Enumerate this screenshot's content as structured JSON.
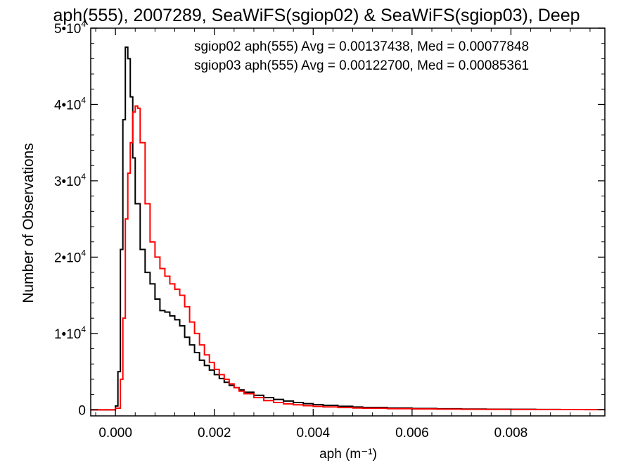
{
  "chart_data": {
    "type": "line",
    "title": "aph(555), 2007289, SeaWiFS(sgiop02) & SeaWiFS(sgiop03), Deep",
    "xlabel": "aph (m⁻¹)",
    "ylabel": "Number of Observations",
    "xlim": [
      -0.0005,
      0.0099
    ],
    "ylim": [
      -800,
      50000
    ],
    "x_ticks": [
      {
        "value": 0.0,
        "label": "0.000"
      },
      {
        "value": 0.002,
        "label": "0.002"
      },
      {
        "value": 0.004,
        "label": "0.004"
      },
      {
        "value": 0.006,
        "label": "0.006"
      },
      {
        "value": 0.008,
        "label": "0.008"
      }
    ],
    "y_ticks": [
      {
        "value": 0,
        "mant": "0",
        "exp": ""
      },
      {
        "value": 10000,
        "mant": "1•10",
        "exp": "4"
      },
      {
        "value": 20000,
        "mant": "2•10",
        "exp": "4"
      },
      {
        "value": 30000,
        "mant": "3•10",
        "exp": "4"
      },
      {
        "value": 40000,
        "mant": "4•10",
        "exp": "4"
      },
      {
        "value": 50000,
        "mant": "5•10",
        "exp": "4"
      }
    ],
    "grid": false,
    "legend_position": "top-right",
    "series": [
      {
        "name": "sgiop02",
        "label": "sgiop02 aph(555) Avg = 0.00137438, Med = 0.00077848",
        "color": "#000000",
        "x": [
          -0.0005,
          0.0,
          5e-05,
          0.0001,
          0.00015,
          0.0002,
          0.00025,
          0.0003,
          0.00035,
          0.0004,
          0.0005,
          0.0006,
          0.0007,
          0.0008,
          0.0009,
          0.001,
          0.0011,
          0.0012,
          0.0013,
          0.0014,
          0.0015,
          0.0016,
          0.0017,
          0.0018,
          0.0019,
          0.002,
          0.0021,
          0.0022,
          0.0023,
          0.0024,
          0.0025,
          0.0026,
          0.0028,
          0.003,
          0.0032,
          0.0034,
          0.0036,
          0.0038,
          0.004,
          0.0042,
          0.0045,
          0.0048,
          0.005,
          0.0055,
          0.006,
          0.0065,
          0.007,
          0.0075,
          0.008,
          0.0085,
          0.009,
          0.0095,
          0.0099
        ],
        "y": [
          0,
          500,
          5000,
          21000,
          38000,
          47500,
          46000,
          41000,
          33000,
          27000,
          21000,
          18000,
          16500,
          14500,
          13000,
          12800,
          12300,
          11800,
          11000,
          9500,
          8500,
          7500,
          6500,
          5800,
          5200,
          4600,
          4100,
          3600,
          3200,
          2900,
          2600,
          2300,
          1900,
          1600,
          1350,
          1150,
          950,
          800,
          680,
          580,
          460,
          360,
          310,
          230,
          170,
          130,
          100,
          80,
          60,
          45,
          35,
          25,
          20
        ]
      },
      {
        "name": "sgiop03",
        "label": "sgiop03 aph(555) Avg = 0.00122700, Med = 0.00085361",
        "color": "#ff0000",
        "x": [
          -0.0005,
          0.0,
          0.0001,
          0.00015,
          0.0002,
          0.00025,
          0.0003,
          0.00035,
          0.0004,
          0.00045,
          0.0005,
          0.0006,
          0.0007,
          0.0008,
          0.0009,
          0.001,
          0.0011,
          0.0012,
          0.0013,
          0.0014,
          0.0015,
          0.0016,
          0.0017,
          0.0018,
          0.0019,
          0.002,
          0.0021,
          0.0022,
          0.0023,
          0.0024,
          0.0025,
          0.0026,
          0.0028,
          0.003,
          0.0032,
          0.0034,
          0.0036,
          0.0038,
          0.004,
          0.0042,
          0.0045,
          0.0048,
          0.005,
          0.0055,
          0.006,
          0.0065,
          0.007,
          0.0075,
          0.008,
          0.0085,
          0.009,
          0.0095,
          0.0099
        ],
        "y": [
          0,
          200,
          4000,
          12000,
          25000,
          31000,
          35000,
          39000,
          39800,
          39500,
          35000,
          27000,
          22000,
          20000,
          18500,
          17500,
          16500,
          15800,
          15000,
          13500,
          11500,
          10000,
          8500,
          7200,
          6200,
          5300,
          4600,
          4000,
          3400,
          2900,
          2450,
          2100,
          1600,
          1200,
          950,
          780,
          650,
          540,
          450,
          380,
          300,
          240,
          200,
          150,
          110,
          85,
          65,
          50,
          40,
          30,
          25,
          20,
          15
        ]
      }
    ]
  }
}
